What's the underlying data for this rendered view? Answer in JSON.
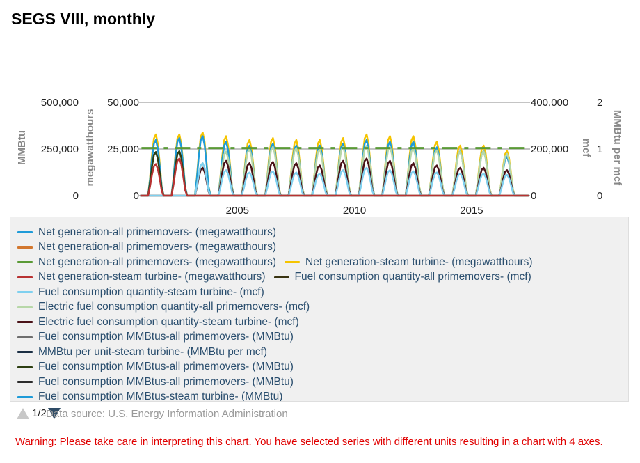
{
  "title": "SEGS VIII, monthly",
  "chart_data": {
    "type": "line",
    "x_range": [
      2000.8,
      2017.5
    ],
    "x_ticks": [
      "2005",
      "2010",
      "2015"
    ],
    "x_tick_values": [
      2005,
      2010,
      2015
    ],
    "axes": {
      "mmbtu": {
        "label": "MMBtu",
        "ticks": [
          "0",
          "250,000",
          "500,000"
        ],
        "range": [
          0,
          500000
        ]
      },
      "mwh": {
        "label": "megawatthours",
        "ticks": [
          "0",
          "25,000",
          "50,000"
        ],
        "range": [
          0,
          50000
        ]
      },
      "mcf": {
        "label": "mcf",
        "ticks": [
          "0",
          "200,000",
          "400,000"
        ],
        "range": [
          0,
          400000
        ]
      },
      "mmbtu_per_mcf": {
        "label": "MMBtu per mcf",
        "ticks": [
          "0",
          "1",
          "2"
        ],
        "range": [
          0,
          2
        ]
      }
    },
    "grid": true,
    "legend_position": "bottom",
    "peak_months": [
      2001.5,
      2002.5,
      2003.5,
      2004.5,
      2005.5,
      2006.5,
      2007.5,
      2008.5,
      2009.5,
      2010.5,
      2011.5,
      2012.5,
      2013.5,
      2014.5,
      2015.5,
      2016.5
    ],
    "series": [
      {
        "name": "Net generation-steam turbine- (megawatthours)",
        "axis": "mwh",
        "color": "#f5c400",
        "peaks": [
          33000,
          33000,
          34000,
          32000,
          30000,
          31000,
          30000,
          30000,
          31000,
          33000,
          32000,
          32000,
          29000,
          27000,
          27000,
          24000
        ]
      },
      {
        "name": "Net generation-all primemovers- (megawatthours)",
        "axis": "mwh",
        "color": "#1f9bd8",
        "peaks": [
          30000,
          31000,
          32000,
          29000,
          27000,
          28000,
          27000,
          27000,
          28000,
          30000,
          29000,
          29000,
          26000,
          24000,
          24000,
          21000
        ]
      },
      {
        "name": "Electric fuel consumption quantity-all primemovers- (mcf)",
        "axis": "mcf",
        "color": "#b7d7a8",
        "peaks": [
          0,
          0,
          140000,
          190000,
          200000,
          210000,
          205000,
          200000,
          210000,
          215000,
          210000,
          205000,
          195000,
          190000,
          190000,
          180000
        ]
      },
      {
        "name": "Electric fuel consumption quantity-steam turbine- (mcf)",
        "axis": "mcf",
        "color": "#4a1218",
        "peaks": [
          0,
          0,
          120000,
          150000,
          140000,
          145000,
          140000,
          130000,
          150000,
          160000,
          150000,
          140000,
          130000,
          120000,
          120000,
          110000
        ]
      },
      {
        "name": "Fuel consumption quantity-steam turbine- (mcf)",
        "axis": "mcf",
        "color": "#7fd0ef",
        "peaks": [
          0,
          0,
          140000,
          110000,
          100000,
          105000,
          100000,
          95000,
          110000,
          120000,
          110000,
          105000,
          100000,
          95000,
          95000,
          90000
        ]
      },
      {
        "name": "Fuel consumption MMBtus-all primemovers- (MMBtu)",
        "axis": "mmbtu",
        "color": "#2d3f12",
        "peaks": [
          235000,
          240000,
          0,
          0,
          0,
          0,
          0,
          0,
          0,
          0,
          0,
          0,
          0,
          0,
          0,
          0
        ]
      },
      {
        "name": "Net generation-steam turbine- (megawatthours)",
        "axis": "mwh",
        "color": "#b83232",
        "peaks": [
          17000,
          20000,
          0,
          0,
          0,
          0,
          0,
          0,
          0,
          0,
          0,
          0,
          0,
          0,
          0,
          0
        ]
      },
      {
        "name": "MMBtu per unit-steam turbine- (MMBtu per mcf)",
        "axis": "mmbtu_per_mcf",
        "color": "#5a9a36",
        "dashed": true,
        "flat": 1.02
      }
    ]
  },
  "legend": [
    [
      {
        "label": "Net generation-all primemovers- (megawatthours)",
        "color": "#1f9bd8"
      }
    ],
    [
      {
        "label": "Net generation-all primemovers- (megawatthours)",
        "color": "#d2772e"
      }
    ],
    [
      {
        "label": "Net generation-all primemovers- (megawatthours)",
        "color": "#5a9a36"
      },
      {
        "label": "Net generation-steam turbine- (megawatthours)",
        "color": "#f5c400"
      }
    ],
    [
      {
        "label": "Net generation-steam turbine- (megawatthours)",
        "color": "#b83232"
      },
      {
        "label": "Fuel consumption quantity-all primemovers- (mcf)",
        "color": "#3a3412"
      }
    ],
    [
      {
        "label": "Fuel consumption quantity-steam turbine- (mcf)",
        "color": "#7fd0ef"
      }
    ],
    [
      {
        "label": "Electric fuel consumption quantity-all primemovers- (mcf)",
        "color": "#b7d7a8"
      }
    ],
    [
      {
        "label": "Electric fuel consumption quantity-steam turbine- (mcf)",
        "color": "#4a1218"
      }
    ],
    [
      {
        "label": "Fuel consumption MMBtus-all primemovers- (MMBtu)",
        "color": "#6e6e6e"
      }
    ],
    [
      {
        "label": "MMBtu per unit-steam turbine- (MMBtu per mcf)",
        "color": "#1b2f44"
      }
    ],
    [
      {
        "label": "Fuel consumption MMBtus-all primemovers- (MMBtu)",
        "color": "#2d3f12"
      }
    ],
    [
      {
        "label": "Fuel consumption MMBtus-all primemovers- (MMBtu)",
        "color": "#2c2c2c"
      }
    ],
    [
      {
        "label": "Fuel consumption MMBtus-steam turbine- (MMBtu)",
        "color": "#1f9bd8"
      }
    ]
  ],
  "pager": {
    "text": "1/2"
  },
  "source": "Data source: U.S. Energy Information Administration",
  "warning": "Warning: Please take care in interpreting this chart. You have selected series with different units resulting in a chart with 4 axes."
}
